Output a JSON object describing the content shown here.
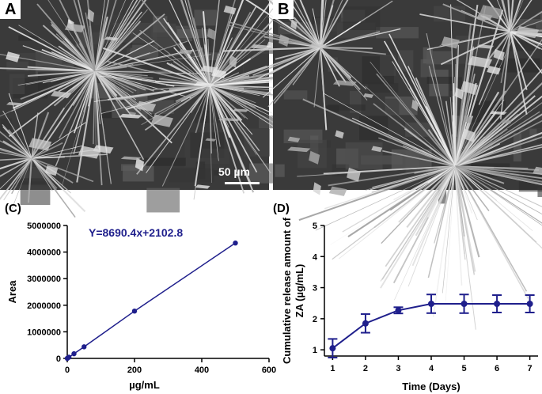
{
  "panels": {
    "a": {
      "label": "A",
      "scale_bar": "50 µm"
    },
    "b": {
      "label": "B"
    },
    "c": {
      "label": "(C)"
    },
    "d": {
      "label": "(D)"
    }
  },
  "colors": {
    "series": "#1f1f8c",
    "axis": "#000000"
  },
  "chart_data": [
    {
      "type": "scatter",
      "title": "",
      "xlabel": "µg/mL",
      "ylabel": "Area",
      "xlim": [
        0,
        600
      ],
      "ylim": [
        0,
        5000000
      ],
      "xticks": [
        0,
        200,
        400,
        600
      ],
      "yticks": [
        0,
        1000000,
        2000000,
        3000000,
        4000000,
        5000000
      ],
      "annotation": "Y=8690.4x+2102.8",
      "fit_line": true,
      "series": [
        {
          "x": [
            0,
            1,
            5,
            20,
            50,
            200,
            500
          ],
          "y": [
            0,
            10000,
            45000,
            175000,
            435000,
            1780000,
            4340000
          ]
        }
      ]
    },
    {
      "type": "line",
      "title": "",
      "xlabel": "Time (Days)",
      "ylabel": "Cumulative release amount of ZA (µg/mL)",
      "ylabel_lines": [
        "Cumulative release amount of",
        "ZA (µg/mL)"
      ],
      "xlim": [
        0.75,
        7.25
      ],
      "ylim": [
        0.8,
        5
      ],
      "xticks": [
        1,
        2,
        3,
        4,
        5,
        6,
        7
      ],
      "yticks": [
        1,
        2,
        3,
        4,
        5
      ],
      "series": [
        {
          "x": [
            1,
            2,
            3,
            4,
            5,
            6,
            7
          ],
          "y": [
            1.05,
            1.85,
            2.27,
            2.48,
            2.48,
            2.48,
            2.48
          ],
          "error": [
            0.3,
            0.3,
            0.1,
            0.3,
            0.3,
            0.28,
            0.28
          ]
        }
      ]
    }
  ]
}
